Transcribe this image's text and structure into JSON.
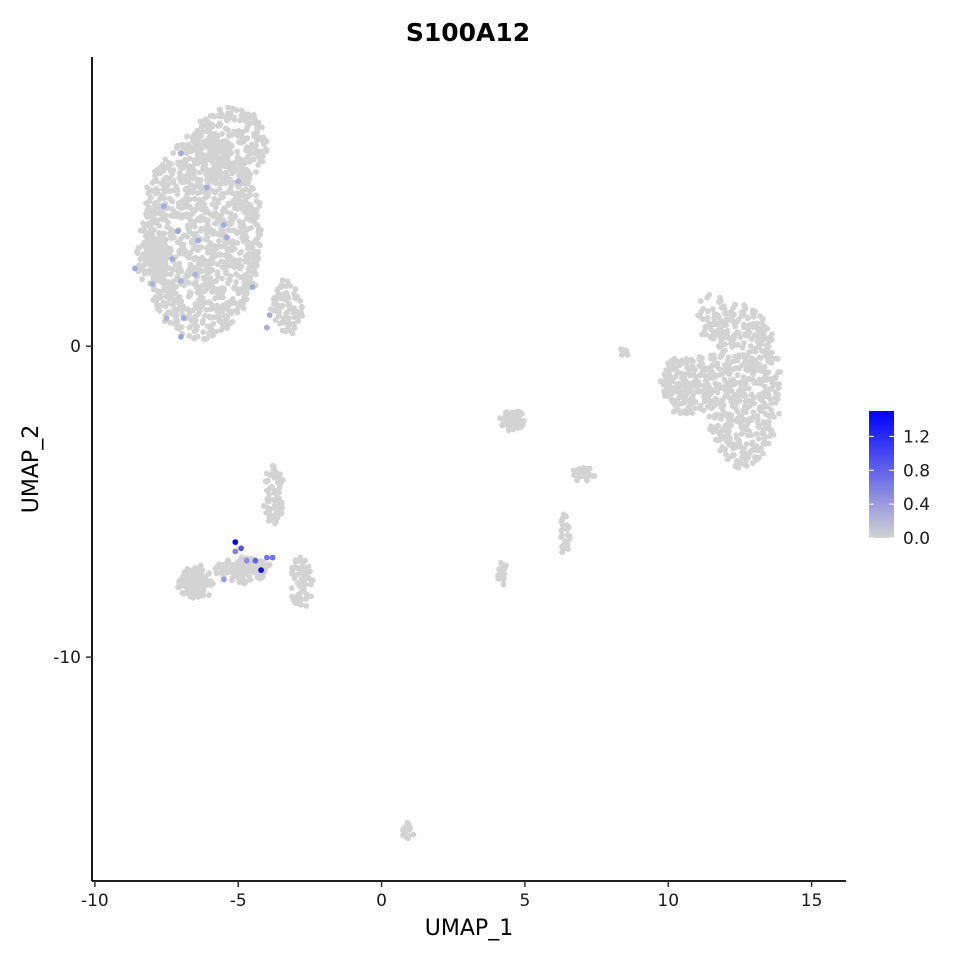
{
  "chart_data": {
    "type": "scatter",
    "title": "S100A12",
    "xlabel": "UMAP_1",
    "ylabel": "UMAP_2",
    "xlim": [
      -10.1,
      16.2
    ],
    "ylim": [
      -17.2,
      9.3
    ],
    "x_ticks": [
      -10,
      -5,
      0,
      5,
      10,
      15
    ],
    "x_tick_labels": [
      "-10",
      "-5",
      "0",
      "5",
      "10",
      "15"
    ],
    "y_ticks": [
      0,
      -10
    ],
    "y_tick_labels": [
      "0",
      "-10"
    ],
    "grid": false,
    "legend_position": "right",
    "colors": {
      "low": "#d3d3d3",
      "high": "#0000ff"
    },
    "color_scale": {
      "min": 0,
      "max": 1.5,
      "ticks": [
        0,
        0.4,
        0.8,
        1.2
      ],
      "tick_labels": [
        "0.0",
        "0.4",
        "0.8",
        "1.2"
      ]
    },
    "clusters": [
      {
        "cx": -6.3,
        "cy": 3.5,
        "rx": 2.1,
        "ry": 3.3,
        "n": 1200
      },
      {
        "cx": -5.3,
        "cy": 6.5,
        "rx": 1.3,
        "ry": 1.2,
        "n": 260
      },
      {
        "cx": -8.0,
        "cy": 2.8,
        "rx": 0.6,
        "ry": 0.8,
        "n": 80
      },
      {
        "cx": -3.3,
        "cy": 1.2,
        "rx": 0.5,
        "ry": 0.9,
        "n": 80
      },
      {
        "cx": 12.6,
        "cy": -1.3,
        "rx": 1.3,
        "ry": 2.6,
        "n": 560
      },
      {
        "cx": 10.7,
        "cy": -1.2,
        "rx": 0.9,
        "ry": 1.0,
        "n": 190
      },
      {
        "cx": 11.5,
        "cy": 1.0,
        "rx": 0.5,
        "ry": 0.8,
        "n": 50
      },
      {
        "cx": -6.5,
        "cy": -7.6,
        "rx": 0.6,
        "ry": 0.5,
        "n": 120
      },
      {
        "cx": -4.8,
        "cy": -7.2,
        "rx": 1.0,
        "ry": 0.4,
        "n": 110
      },
      {
        "cx": -3.8,
        "cy": -4.8,
        "rx": 0.35,
        "ry": 1.0,
        "n": 70
      },
      {
        "cx": -2.8,
        "cy": -7.6,
        "rx": 0.4,
        "ry": 0.9,
        "n": 70
      },
      {
        "cx": 4.6,
        "cy": -2.4,
        "rx": 0.4,
        "ry": 0.3,
        "n": 90
      },
      {
        "cx": 7.0,
        "cy": -4.1,
        "rx": 0.45,
        "ry": 0.18,
        "n": 35
      },
      {
        "cx": 6.4,
        "cy": -6.0,
        "rx": 0.15,
        "ry": 0.6,
        "n": 30
      },
      {
        "cx": 4.2,
        "cy": -7.3,
        "rx": 0.15,
        "ry": 0.4,
        "n": 20
      },
      {
        "cx": 8.5,
        "cy": -0.2,
        "rx": 0.2,
        "ry": 0.08,
        "n": 8
      },
      {
        "cx": 0.9,
        "cy": -15.6,
        "rx": 0.18,
        "ry": 0.25,
        "n": 20
      }
    ],
    "expressing_points": [
      {
        "x": -5.1,
        "y": -6.3,
        "value": 1.5
      },
      {
        "x": -4.2,
        "y": -7.2,
        "value": 1.4
      },
      {
        "x": -4.9,
        "y": -6.5,
        "value": 0.9
      },
      {
        "x": -3.8,
        "y": -6.8,
        "value": 0.7
      },
      {
        "x": -4.0,
        "y": -6.8,
        "value": 0.7
      },
      {
        "x": -4.4,
        "y": -6.9,
        "value": 0.8
      },
      {
        "x": -4.7,
        "y": -6.9,
        "value": 0.5
      },
      {
        "x": -5.5,
        "y": -7.5,
        "value": 0.4
      },
      {
        "x": -5.1,
        "y": -6.6,
        "value": 0.6
      },
      {
        "x": -7.0,
        "y": 6.2,
        "value": 0.3
      },
      {
        "x": -6.1,
        "y": 5.1,
        "value": 0.3
      },
      {
        "x": -7.6,
        "y": 4.5,
        "value": 0.3
      },
      {
        "x": -7.1,
        "y": 3.7,
        "value": 0.35
      },
      {
        "x": -8.6,
        "y": 2.5,
        "value": 0.3
      },
      {
        "x": -7.3,
        "y": 2.8,
        "value": 0.3
      },
      {
        "x": -6.4,
        "y": 3.4,
        "value": 0.3
      },
      {
        "x": -5.4,
        "y": 3.5,
        "value": 0.3
      },
      {
        "x": -8.0,
        "y": 2.0,
        "value": 0.25
      },
      {
        "x": -7.0,
        "y": 2.1,
        "value": 0.25
      },
      {
        "x": -6.9,
        "y": 0.9,
        "value": 0.3
      },
      {
        "x": -7.0,
        "y": 0.3,
        "value": 0.35
      },
      {
        "x": -7.5,
        "y": 0.9,
        "value": 0.25
      },
      {
        "x": -3.9,
        "y": 1.0,
        "value": 0.3
      },
      {
        "x": -4.0,
        "y": 0.6,
        "value": 0.3
      },
      {
        "x": -4.5,
        "y": 1.9,
        "value": 0.3
      },
      {
        "x": -5.5,
        "y": 3.9,
        "value": 0.3
      },
      {
        "x": -6.5,
        "y": 2.3,
        "value": 0.25
      },
      {
        "x": -5.0,
        "y": 5.3,
        "value": 0.25
      }
    ]
  }
}
